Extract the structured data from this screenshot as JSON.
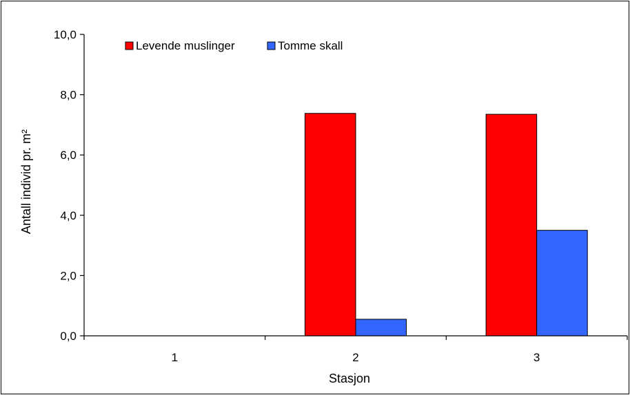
{
  "chart_data": {
    "type": "bar",
    "categories": [
      "1",
      "2",
      "3"
    ],
    "series": [
      {
        "name": "Levende muslinger",
        "values": [
          0,
          7.38,
          7.35
        ],
        "color": "#ff0000"
      },
      {
        "name": "Tomme skall",
        "values": [
          0,
          0.55,
          3.5
        ],
        "color": "#3366ff"
      }
    ],
    "xlabel": "Stasjon",
    "ylabel": "Antall individ pr. m²",
    "ylim": [
      0,
      10
    ],
    "yticks": [
      "0,0",
      "2,0",
      "4,0",
      "6,0",
      "8,0",
      "10,0"
    ],
    "yticks_values": [
      0,
      2,
      4,
      6,
      8,
      10
    ],
    "grid": false,
    "legend_position": "top-left"
  }
}
